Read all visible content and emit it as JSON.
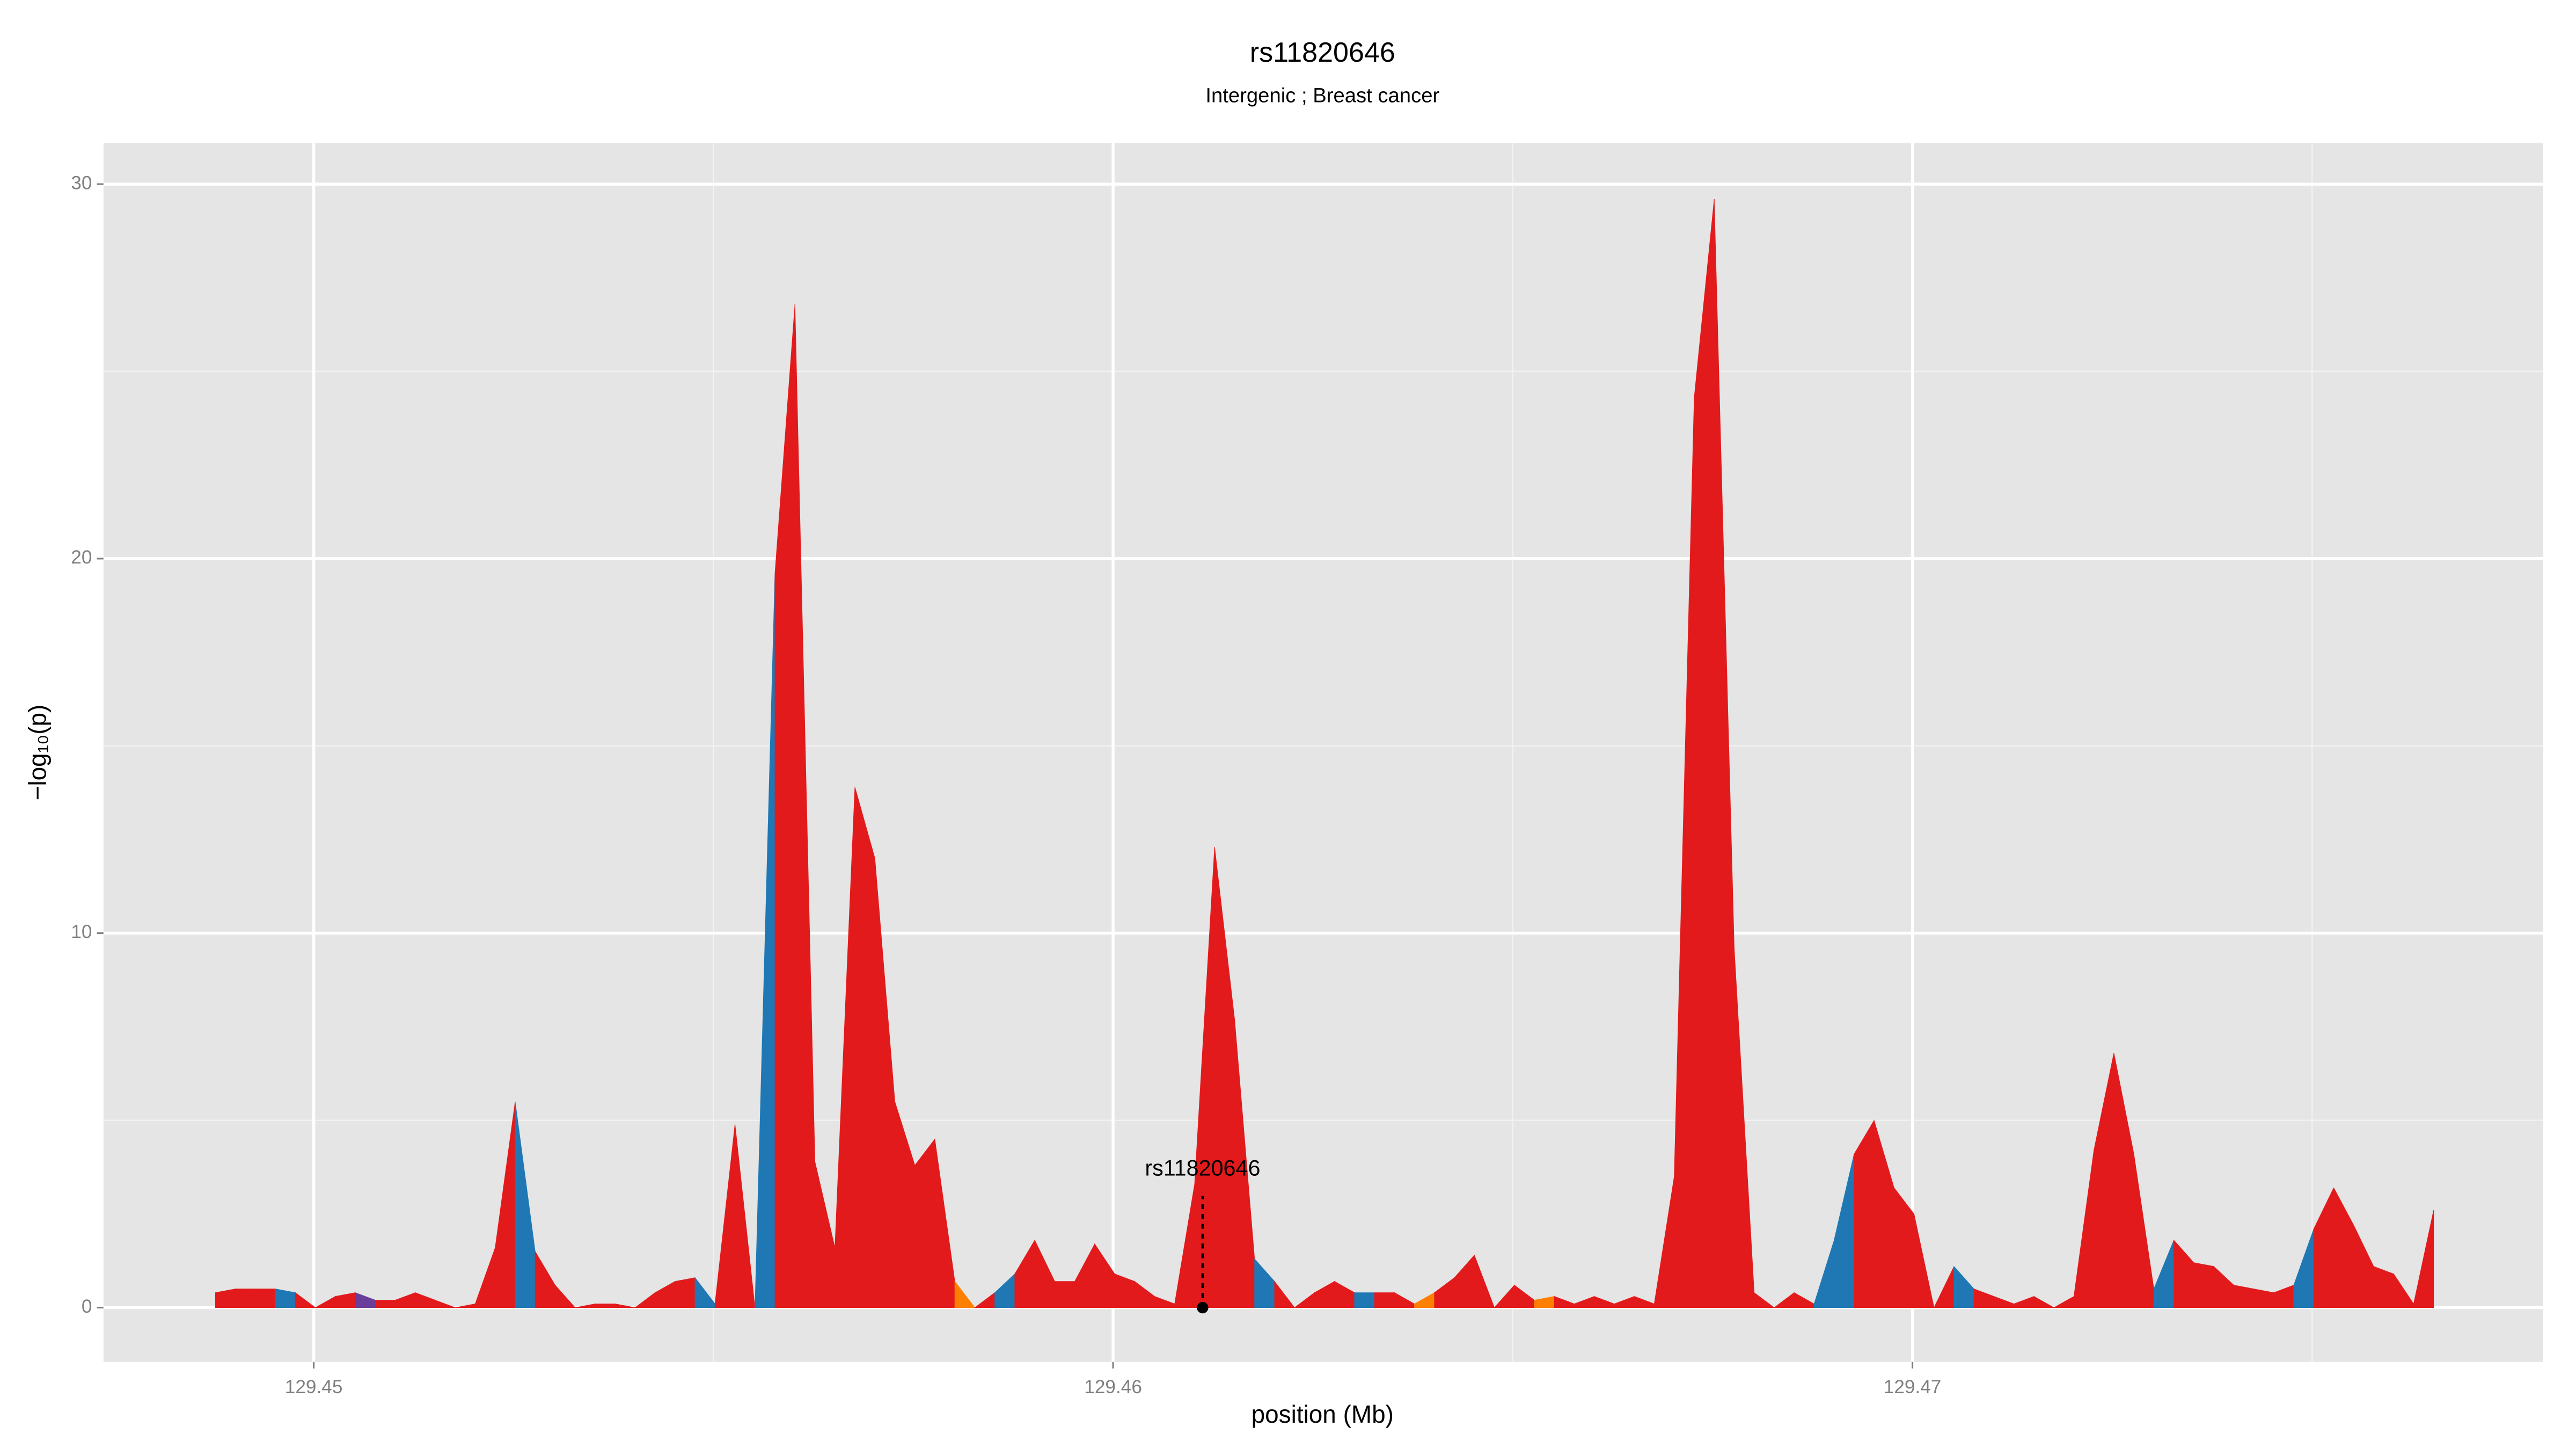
{
  "chart_data": {
    "type": "area",
    "title": "rs11820646",
    "subtitle": "Intergenic ; Breast cancer",
    "xlabel": "position (Mb)",
    "ylabel": "−log₁₀(p)",
    "xlim": [
      129.44737,
      129.47789
    ],
    "ylim": [
      -1.45,
      31.1
    ],
    "xticks": [
      129.45,
      129.46,
      129.47
    ],
    "yticks": [
      0,
      10,
      20,
      30
    ],
    "x_minor_ticks": [
      129.455,
      129.465,
      129.475
    ],
    "y_minor_ticks": [
      5,
      15,
      25
    ],
    "grid": true,
    "panel_color": "#e5e5e5",
    "x": [
      129.44877,
      129.44902,
      129.44927,
      129.44952,
      129.44977,
      129.45002,
      129.45027,
      129.45052,
      129.45077,
      129.45102,
      129.45127,
      129.45152,
      129.45177,
      129.45202,
      129.45227,
      129.45252,
      129.45277,
      129.45302,
      129.45327,
      129.45352,
      129.45377,
      129.45402,
      129.45427,
      129.45452,
      129.45477,
      129.45502,
      129.45527,
      129.45552,
      129.45577,
      129.45602,
      129.45627,
      129.45652,
      129.45677,
      129.45702,
      129.45727,
      129.45752,
      129.45777,
      129.45802,
      129.45827,
      129.45852,
      129.45877,
      129.45902,
      129.45927,
      129.45952,
      129.45977,
      129.46002,
      129.46027,
      129.46052,
      129.46077,
      129.46102,
      129.46127,
      129.46152,
      129.46177,
      129.46202,
      129.46227,
      129.46252,
      129.46277,
      129.46302,
      129.46327,
      129.46352,
      129.46377,
      129.46402,
      129.46427,
      129.46452,
      129.46477,
      129.46502,
      129.46527,
      129.46552,
      129.46577,
      129.46602,
      129.46627,
      129.46652,
      129.46677,
      129.46702,
      129.46727,
      129.46752,
      129.46777,
      129.46802,
      129.46827,
      129.46852,
      129.46877,
      129.46902,
      129.46927,
      129.46952,
      129.46977,
      129.47002,
      129.47027,
      129.47052,
      129.47077,
      129.47102,
      129.47127,
      129.47152,
      129.47177,
      129.47202,
      129.47227,
      129.47252,
      129.47277,
      129.47302,
      129.47327,
      129.47352,
      129.47377,
      129.47402,
      129.47427,
      129.47452,
      129.47477,
      129.47502,
      129.47527,
      129.47552,
      129.47577,
      129.47602,
      129.47627,
      129.47652
    ],
    "values": [
      0.4,
      0.5,
      0.5,
      0.5,
      0.4,
      0,
      0.3,
      0.4,
      0.2,
      0.2,
      0.4,
      0.2,
      0,
      0.1,
      1.6,
      5.5,
      1.5,
      0.6,
      0,
      0.1,
      0.1,
      0,
      0.4,
      0.7,
      0.8,
      0.1,
      4.9,
      0,
      19.6,
      26.8,
      3.9,
      1.6,
      13.9,
      12.0,
      5.5,
      3.8,
      4.5,
      0.7,
      0,
      0.4,
      0.9,
      1.8,
      0.7,
      0.7,
      1.7,
      0.9,
      0.7,
      0.3,
      0.1,
      3.3,
      12.3,
      7.7,
      1.3,
      0.7,
      0,
      0.4,
      0.7,
      0.4,
      0.4,
      0.4,
      0.1,
      0.4,
      0.8,
      1.4,
      0,
      0.6,
      0.2,
      0.3,
      0.1,
      0.3,
      0.1,
      0.3,
      0.1,
      3.5,
      24.3,
      29.6,
      9.6,
      0.4,
      0,
      0.4,
      0.1,
      1.8,
      4.1,
      5.0,
      3.2,
      2.5,
      0,
      1.1,
      0.5,
      0.3,
      0.1,
      0.3,
      0,
      0.3,
      4.2,
      6.8,
      4.1,
      0.5,
      1.8,
      1.2,
      1.1,
      0.6,
      0.5,
      0.4,
      0.6,
      2.1,
      3.2,
      2.2,
      1.1,
      0.9,
      0.1,
      2.6
    ],
    "segment_colors": [
      "#e31a1c",
      "#e31a1c",
      "#e31a1c",
      "#1f78b4",
      "#e31a1c",
      "#e31a1c",
      "#e31a1c",
      "#6a3d9a",
      "#e31a1c",
      "#e31a1c",
      "#e31a1c",
      "#e31a1c",
      "#e31a1c",
      "#e31a1c",
      "#e31a1c",
      "#1f78b4",
      "#e31a1c",
      "#e31a1c",
      "#e31a1c",
      "#e31a1c",
      "#e31a1c",
      "#e31a1c",
      "#e31a1c",
      "#e31a1c",
      "#1f78b4",
      "#e31a1c",
      "#e31a1c",
      "#1f78b4",
      "#e31a1c",
      "#e31a1c",
      "#e31a1c",
      "#e31a1c",
      "#e31a1c",
      "#e31a1c",
      "#e31a1c",
      "#e31a1c",
      "#e31a1c",
      "#ff7f00",
      "#e31a1c",
      "#1f78b4",
      "#e31a1c",
      "#e31a1c",
      "#e31a1c",
      "#e31a1c",
      "#e31a1c",
      "#e31a1c",
      "#e31a1c",
      "#e31a1c",
      "#e31a1c",
      "#e31a1c",
      "#e31a1c",
      "#e31a1c",
      "#1f78b4",
      "#e31a1c",
      "#e31a1c",
      "#e31a1c",
      "#e31a1c",
      "#1f78b4",
      "#e31a1c",
      "#e31a1c",
      "#ff7f00",
      "#e31a1c",
      "#e31a1c",
      "#e31a1c",
      "#e31a1c",
      "#e31a1c",
      "#ff7f00",
      "#e31a1c",
      "#e31a1c",
      "#e31a1c",
      "#e31a1c",
      "#e31a1c",
      "#e31a1c",
      "#e31a1c",
      "#e31a1c",
      "#e31a1c",
      "#e31a1c",
      "#e31a1c",
      "#e31a1c",
      "#e31a1c",
      "#1f78b4",
      "#1f78b4",
      "#e31a1c",
      "#e31a1c",
      "#e31a1c",
      "#e31a1c",
      "#e31a1c",
      "#1f78b4",
      "#e31a1c",
      "#e31a1c",
      "#e31a1c",
      "#e31a1c",
      "#e31a1c",
      "#e31a1c",
      "#e31a1c",
      "#e31a1c",
      "#e31a1c",
      "#1f78b4",
      "#e31a1c",
      "#e31a1c",
      "#e31a1c",
      "#e31a1c",
      "#e31a1c",
      "#e31a1c",
      "#1f78b4",
      "#e31a1c",
      "#e31a1c",
      "#e31a1c",
      "#e31a1c",
      "#e31a1c",
      "#e31a1c"
    ],
    "annotation": {
      "label": "rs11820646",
      "x": 129.46112,
      "y": 0
    }
  }
}
